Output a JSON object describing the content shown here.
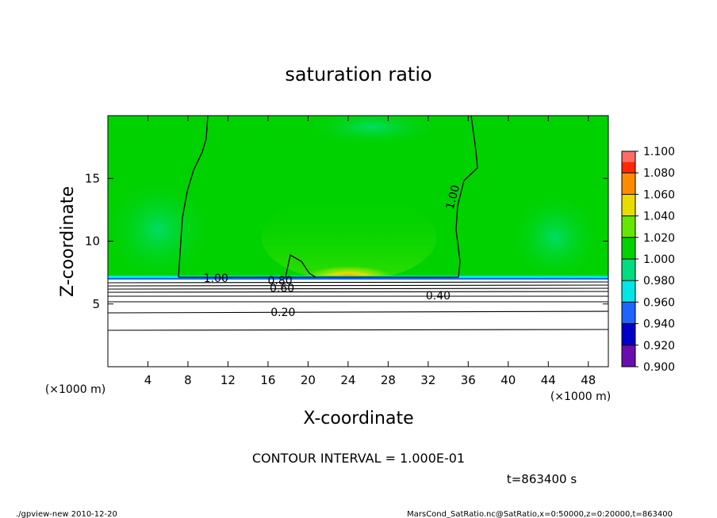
{
  "chart_data": {
    "type": "heatmap",
    "title": "saturation ratio",
    "xlabel": "X-coordinate",
    "ylabel": "Z-coordinate",
    "x_unit": "(×1000 m)",
    "y_unit": "(×1000 m)",
    "xlim": [
      0,
      50
    ],
    "ylim": [
      0,
      20
    ],
    "x_ticks": [
      4,
      8,
      12,
      16,
      20,
      24,
      28,
      32,
      36,
      40,
      44,
      48
    ],
    "y_ticks": [
      5,
      10,
      15
    ],
    "contour_interval_text": "CONTOUR INTERVAL = 1.000E-01",
    "time_text": "t=863400 s",
    "footer_left": "./gpview-new   2010-12-20",
    "footer_right": "MarsCond_SatRatio.nc@SatRatio,x=0:50000,z=0:20000,t=863400",
    "contour_labels": [
      {
        "text": "1.00",
        "x": 10.8,
        "z": 7.0
      },
      {
        "text": "1.00",
        "x": 34.5,
        "z": 13.5
      },
      {
        "text": "0.80",
        "x": 17.2,
        "z": 6.8
      },
      {
        "text": "0.60",
        "x": 17.4,
        "z": 6.2
      },
      {
        "text": "0.40",
        "x": 33.0,
        "z": 5.6
      },
      {
        "text": "0.20",
        "x": 17.5,
        "z": 4.3
      }
    ],
    "colorbar": {
      "levels": [
        "0.900",
        "0.920",
        "0.940",
        "0.960",
        "0.980",
        "1.000",
        "1.020",
        "1.040",
        "1.060",
        "1.080",
        "1.100"
      ],
      "colors": [
        "#6a0dad",
        "#0000c8",
        "#1e64ff",
        "#00e6e6",
        "#00dc82",
        "#00d200",
        "#64e600",
        "#e6dc00",
        "#ff8c00",
        "#ff2800",
        "#ff7878"
      ]
    },
    "field_summary": {
      "below_z_km": 7,
      "above_value": 1.0,
      "contours_below": [
        0.2,
        0.4,
        0.6,
        0.8
      ]
    }
  }
}
